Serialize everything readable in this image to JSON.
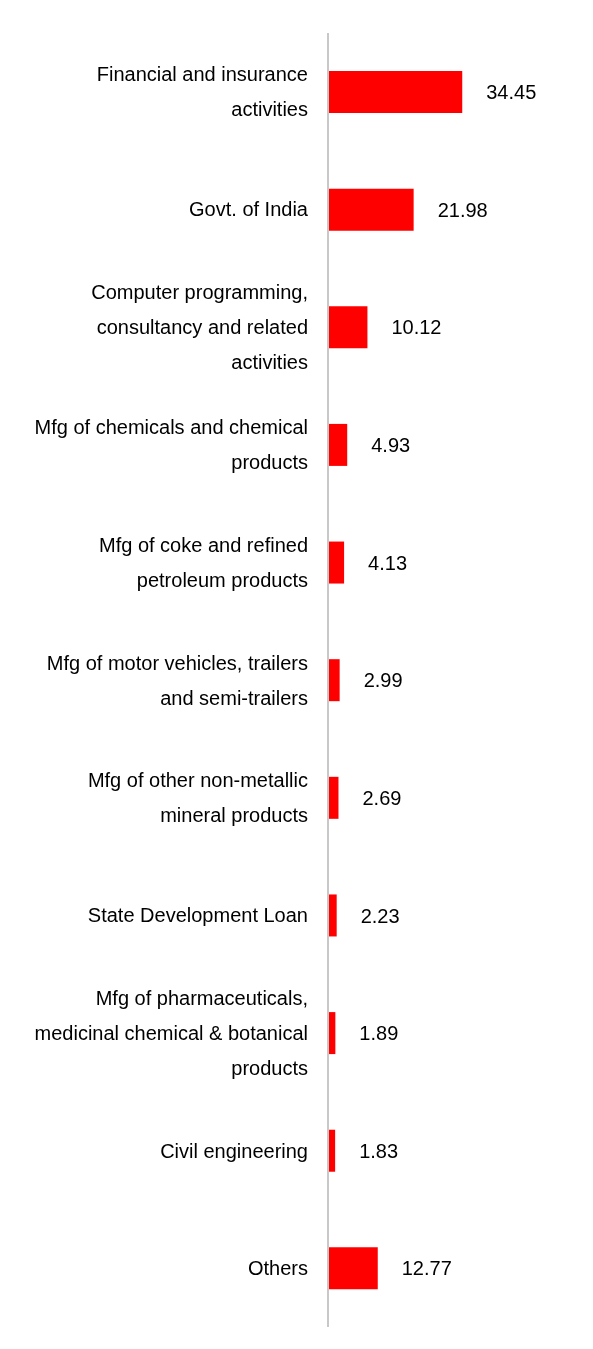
{
  "chart_data": {
    "type": "bar",
    "orientation": "horizontal",
    "categories": [
      "Financial and insurance activities",
      "Govt. of India",
      "Computer programming, consultancy and related activities",
      "Mfg of chemicals and chemical products",
      "Mfg of coke and refined petroleum products",
      "Mfg of motor vehicles, trailers and semi-trailers",
      "Mfg of other non-metallic mineral products",
      "State Development Loan",
      "Mfg of pharmaceuticals, medicinal chemical & botanical products",
      "Civil engineering",
      "Others"
    ],
    "values": [
      34.45,
      21.98,
      10.12,
      4.93,
      4.13,
      2.99,
      2.69,
      2.23,
      1.89,
      1.83,
      12.77
    ],
    "color": "#ff0000",
    "data_labels": true,
    "grid": false,
    "legend": false
  }
}
